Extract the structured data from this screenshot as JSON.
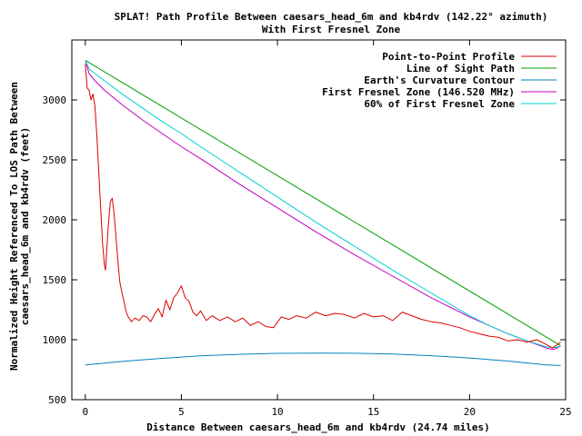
{
  "chart_data": {
    "type": "line",
    "title": "SPLAT! Path Profile Between caesars_head_6m and kb4rdv (142.22° azimuth)",
    "subtitle": "With First Fresnel Zone",
    "xlabel": "Distance Between caesars_head_6m and kb4rdv (24.74 miles)",
    "ylabel_line1": "Normalized Height Referenced To LOS Path Between",
    "ylabel_line2": "caesars_head_6m and kb4rdv (feet)",
    "xlim": [
      -0.7,
      25
    ],
    "ylim": [
      500,
      3500
    ],
    "x_ticks": [
      0,
      5,
      10,
      15,
      20,
      25
    ],
    "y_ticks": [
      500,
      1000,
      1500,
      2000,
      2500,
      3000
    ],
    "legend_position": "top-right",
    "grid": false,
    "path_length_miles": 24.74,
    "series": [
      {
        "name": "Point-to-Point Profile",
        "color": "#dd0000",
        "x": [
          0,
          0.1,
          0.2,
          0.3,
          0.4,
          0.5,
          0.6,
          0.7,
          0.8,
          0.9,
          1.0,
          1.05,
          1.1,
          1.2,
          1.3,
          1.4,
          1.5,
          1.6,
          1.7,
          1.8,
          1.9,
          2.0,
          2.1,
          2.2,
          2.4,
          2.6,
          2.8,
          3.0,
          3.2,
          3.4,
          3.6,
          3.8,
          4.0,
          4.2,
          4.4,
          4.6,
          4.8,
          5.0,
          5.2,
          5.4,
          5.6,
          5.8,
          6.0,
          6.3,
          6.6,
          7.0,
          7.4,
          7.8,
          8.2,
          8.6,
          9.0,
          9.4,
          9.8,
          10.2,
          10.6,
          11.0,
          11.5,
          12.0,
          12.5,
          13.0,
          13.5,
          14.0,
          14.5,
          15.0,
          15.5,
          16.0,
          16.5,
          17.0,
          17.5,
          18.0,
          18.5,
          19.0,
          19.5,
          20.0,
          20.5,
          21.0,
          21.5,
          22.0,
          22.5,
          23.0,
          23.5,
          24.0,
          24.3,
          24.5,
          24.74
        ],
        "y": [
          3300,
          3100,
          3080,
          3000,
          3050,
          2950,
          2700,
          2400,
          2100,
          1800,
          1620,
          1580,
          1700,
          1950,
          2150,
          2180,
          2050,
          1850,
          1650,
          1480,
          1400,
          1330,
          1250,
          1200,
          1150,
          1180,
          1160,
          1200,
          1190,
          1150,
          1210,
          1260,
          1190,
          1330,
          1250,
          1350,
          1390,
          1450,
          1350,
          1320,
          1230,
          1200,
          1240,
          1160,
          1200,
          1160,
          1190,
          1150,
          1180,
          1120,
          1150,
          1110,
          1100,
          1190,
          1170,
          1200,
          1180,
          1230,
          1200,
          1220,
          1210,
          1180,
          1220,
          1190,
          1200,
          1160,
          1230,
          1200,
          1170,
          1150,
          1140,
          1120,
          1100,
          1070,
          1050,
          1030,
          1020,
          990,
          1000,
          980,
          1000,
          960,
          930,
          950,
          980
        ]
      },
      {
        "name": "Line of Sight Path",
        "color": "#00a000",
        "x": [
          0,
          24.74
        ],
        "y": [
          3330,
          950
        ]
      },
      {
        "name": "Earth's Curvature Contour",
        "color": "#0080c0",
        "x": [
          0,
          2,
          4,
          6,
          8,
          10,
          12.37,
          14,
          16,
          18,
          20,
          22,
          24,
          24.74
        ],
        "y": [
          790,
          820,
          845,
          865,
          878,
          886,
          888,
          887,
          880,
          867,
          848,
          822,
          790,
          785
        ]
      },
      {
        "name": "First Fresnel Zone (146.520 MHz)",
        "color": "#c000c0",
        "x": [
          0,
          0.2,
          0.5,
          1,
          2,
          3,
          4,
          5,
          6,
          8,
          10,
          12,
          14,
          16,
          18,
          20,
          21,
          22,
          23,
          24,
          24.3,
          24.5,
          24.74
        ],
        "y": [
          3330,
          3220,
          3160,
          3080,
          2950,
          2830,
          2720,
          2610,
          2510,
          2300,
          2100,
          1900,
          1710,
          1530,
          1350,
          1190,
          1120,
          1050,
          990,
          930,
          920,
          925,
          950
        ]
      },
      {
        "name": "60% of First Fresnel Zone",
        "color": "#00d0d0",
        "x": [
          0,
          0.2,
          0.5,
          1,
          2,
          3,
          4,
          5,
          6,
          8,
          10,
          12,
          14,
          16,
          18,
          20,
          21,
          22,
          23,
          24,
          24.5,
          24.74
        ],
        "y": [
          3330,
          3260,
          3220,
          3160,
          3040,
          2930,
          2820,
          2720,
          2610,
          2400,
          2190,
          1980,
          1780,
          1580,
          1390,
          1200,
          1120,
          1050,
          990,
          940,
          935,
          950
        ]
      }
    ]
  }
}
